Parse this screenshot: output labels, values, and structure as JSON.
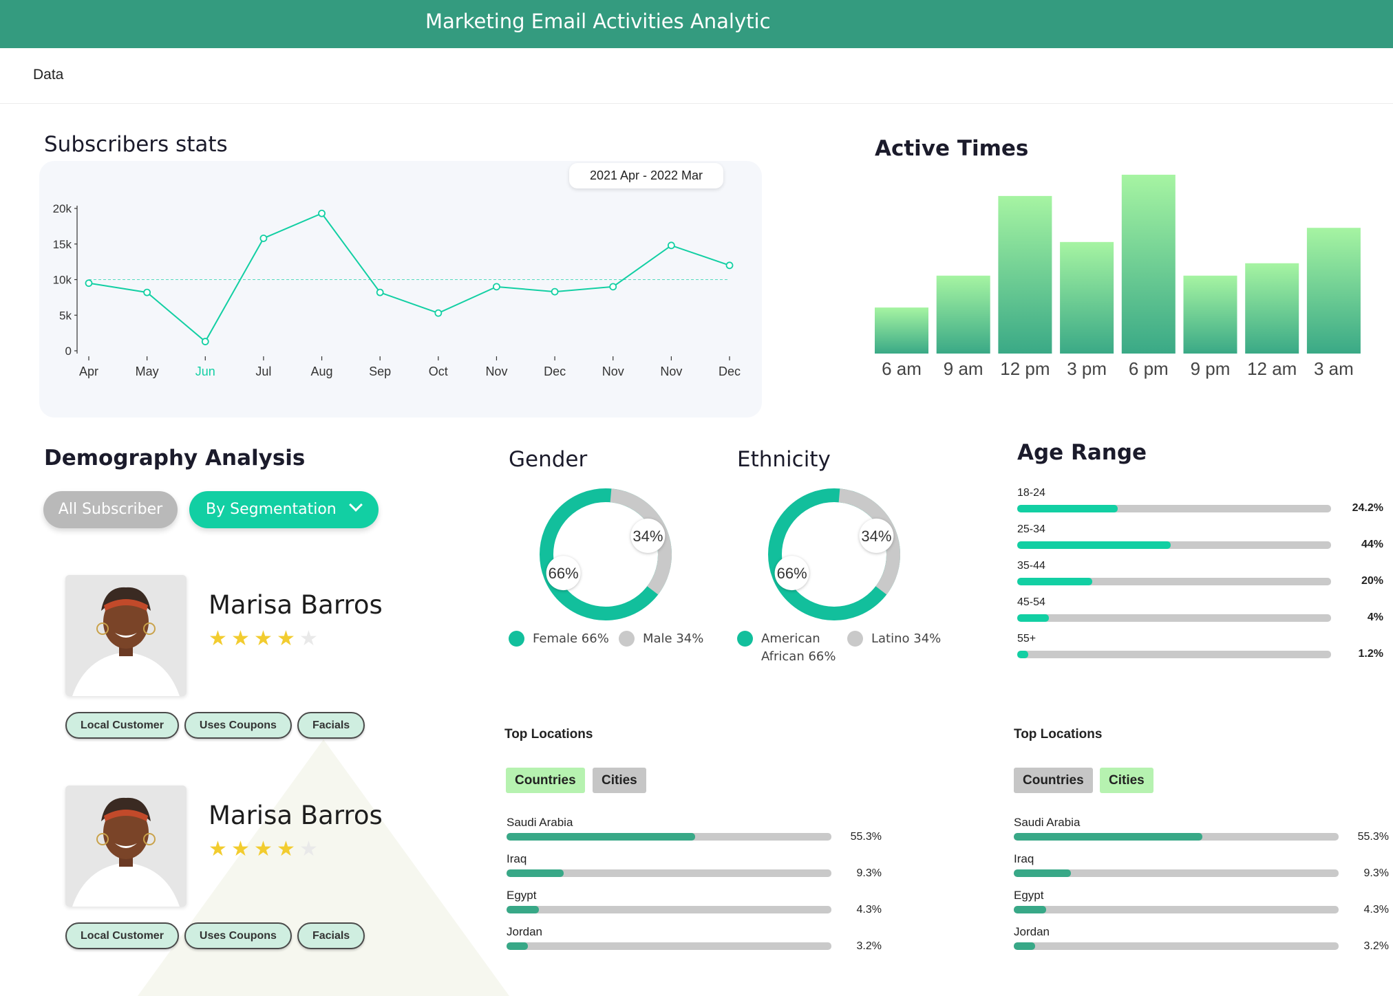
{
  "header": {
    "title": "Marketing Email Activities Analytic"
  },
  "subnav": {
    "item": "Data"
  },
  "subscribers": {
    "title": "Subscribers stats",
    "date_range": "2021 Apr - 2022 Mar"
  },
  "active_times": {
    "title": "Active Times"
  },
  "demography": {
    "title": "Demography Analysis",
    "all_label": "All Subscriber",
    "seg_label": "By Segmentation",
    "profiles": [
      {
        "name": "Marisa Barros",
        "rating": 4,
        "max_rating": 5,
        "tags": [
          "Local Customer",
          "Uses Coupons",
          "Facials"
        ]
      },
      {
        "name": "Marisa Barros",
        "rating": 4,
        "max_rating": 5,
        "tags": [
          "Local Customer",
          "Uses Coupons",
          "Facials"
        ]
      }
    ]
  },
  "gender": {
    "title": "Gender",
    "major_pct": "66%",
    "minor_pct": "34%",
    "legend_a": "Female 66%",
    "legend_b": "Male 34%"
  },
  "ethnicity": {
    "title": "Ethnicity",
    "major_pct": "66%",
    "minor_pct": "34%",
    "legend_a_line1": "American",
    "legend_a_line2": "African 66%",
    "legend_b": "Latino 34%"
  },
  "age_range": {
    "title": "Age Range",
    "rows": [
      {
        "label": "18-24",
        "value": "24.2%",
        "fraction": 0.32
      },
      {
        "label": "25-34",
        "value": "44%",
        "fraction": 0.49
      },
      {
        "label": "35-44",
        "value": "20%",
        "fraction": 0.24
      },
      {
        "label": "45-54",
        "value": "4%",
        "fraction": 0.1
      },
      {
        "label": "55+",
        "value": "1.2%",
        "fraction": 0.035
      }
    ]
  },
  "locations_left": {
    "title": "Top Locations",
    "tab_countries": "Countries",
    "tab_cities": "Cities",
    "active_tab": "Countries",
    "rows": [
      {
        "name": "Saudi Arabia",
        "value": "55.3%",
        "fraction": 0.58
      },
      {
        "name": "Iraq",
        "value": "9.3%",
        "fraction": 0.175
      },
      {
        "name": "Egypt",
        "value": "4.3%",
        "fraction": 0.1
      },
      {
        "name": "Jordan",
        "value": "3.2%",
        "fraction": 0.065
      }
    ]
  },
  "locations_right": {
    "title": "Top Locations",
    "tab_countries": "Countries",
    "tab_cities": "Cities",
    "active_tab": "Cities",
    "rows": [
      {
        "name": "Saudi Arabia",
        "value": "55.3%",
        "fraction": 0.58
      },
      {
        "name": "Iraq",
        "value": "9.3%",
        "fraction": 0.175
      },
      {
        "name": "Egypt",
        "value": "4.3%",
        "fraction": 0.1
      },
      {
        "name": "Jordan",
        "value": "3.2%",
        "fraction": 0.065
      }
    ]
  },
  "chart_data": [
    {
      "type": "line",
      "title": "Subscribers stats",
      "categories": [
        "Apr",
        "May",
        "Jun",
        "Jul",
        "Aug",
        "Sep",
        "Oct",
        "Nov",
        "Dec",
        "Nov",
        "Nov",
        "Dec"
      ],
      "highlight_category_index": 2,
      "series": [
        {
          "values": [
            9500,
            8200,
            1300,
            15800,
            19300,
            8200,
            5300,
            9000,
            8300,
            9000,
            14800,
            12000
          ]
        }
      ],
      "y_ticks": [
        "0",
        "5k",
        "10k",
        "15k",
        "20k"
      ],
      "ylim": [
        0,
        20000
      ],
      "reference_line": 10000,
      "line_color": "#12cfa3"
    },
    {
      "type": "bar",
      "title": "Active Times",
      "categories": [
        "6 am",
        "9 am",
        "12 pm",
        "3 pm",
        "6 pm",
        "9 pm",
        "12 am",
        "3 am"
      ],
      "values": [
        26,
        44,
        89,
        63,
        101,
        44,
        51,
        71
      ],
      "ylim": [
        0,
        101
      ]
    },
    {
      "type": "pie",
      "title": "Gender",
      "labels": [
        "Female",
        "Male"
      ],
      "values": [
        66,
        34
      ],
      "colors": [
        "#12bf9c",
        "#c9c9c9"
      ]
    },
    {
      "type": "pie",
      "title": "Ethnicity",
      "labels": [
        "American African",
        "Latino"
      ],
      "values": [
        66,
        34
      ],
      "colors": [
        "#12bf9c",
        "#c9c9c9"
      ]
    }
  ]
}
